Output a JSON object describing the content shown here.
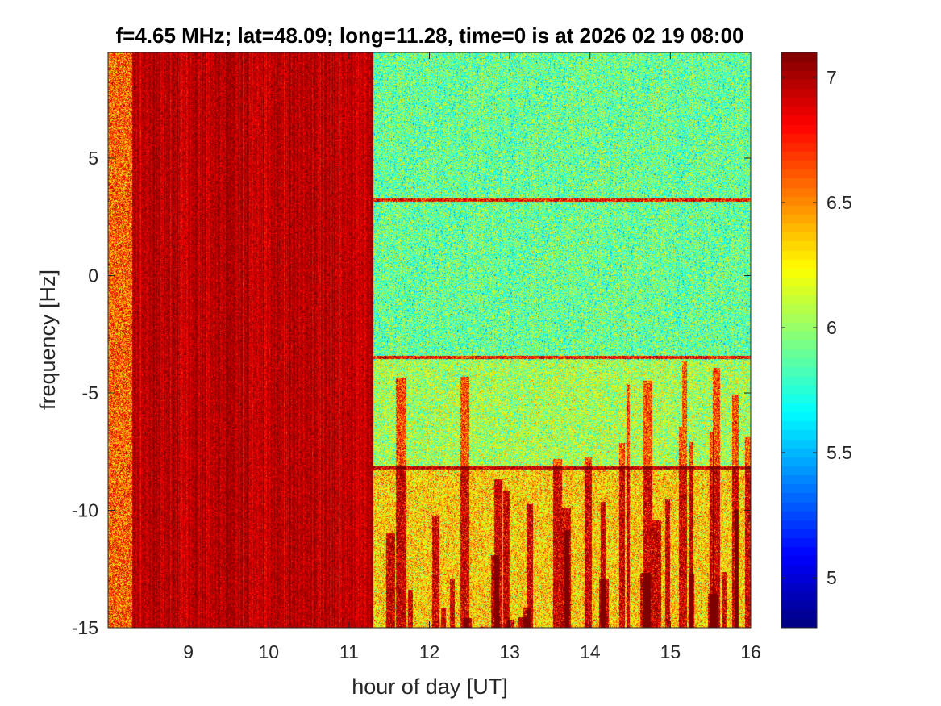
{
  "chart_data": {
    "type": "heatmap",
    "title": "f=4.65 MHz;  lat=48.09; long=11.28, time=0 is at 2026 02 19 08:00",
    "xlabel": "hour of day [UT]",
    "ylabel": "frequency [Hz]",
    "xlim": [
      8,
      16
    ],
    "ylim": [
      -15,
      9.5
    ],
    "xticks": [
      9,
      10,
      11,
      12,
      13,
      14,
      15,
      16
    ],
    "yticks": [
      -15,
      -10,
      -5,
      0,
      5
    ],
    "colormap": "jet",
    "clim": [
      4.8,
      7.1
    ],
    "colorbar_ticks": [
      5,
      5.5,
      6,
      6.5,
      7
    ],
    "regions": [
      {
        "x_range": [
          8.0,
          8.3
        ],
        "level": 6.6,
        "note": "noisy onset"
      },
      {
        "x_range": [
          8.3,
          11.3
        ],
        "level": 7.0
      },
      {
        "x_range": [
          11.3,
          16.0
        ],
        "level": 5.9
      }
    ],
    "horizontal_traces_hz": [
      3.2,
      -3.5,
      -8.2
    ],
    "grid": false
  }
}
